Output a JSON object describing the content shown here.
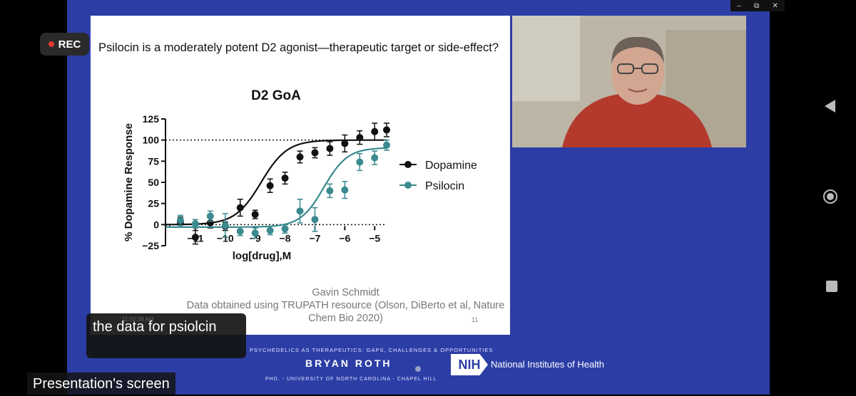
{
  "window_controls": {
    "minimize": "–",
    "restore": "⧉",
    "close": "✕"
  },
  "recording": {
    "label": "REC"
  },
  "slide": {
    "title": "Psilocin is a moderately potent D2 agonist—therapeutic target or side-effect?",
    "credit_line1": "Gavin Schmidt",
    "credit_line2": "Data obtained using TRUPATH resource (Olson, DiBerto et al, Nature",
    "credit_line3": "Chem Bio 2020)",
    "slide_number": "11"
  },
  "chart_data": {
    "type": "scatter",
    "title": "D2 GoA",
    "xlabel": "log[drug],M",
    "ylabel": "% Dopamine Response",
    "xlim": [
      -12,
      -4.6
    ],
    "ylim": [
      -25,
      125
    ],
    "xticks": [
      -11,
      -10,
      -9,
      -8,
      -7,
      -6,
      -5
    ],
    "yticks": [
      -25,
      0,
      25,
      50,
      75,
      100,
      125
    ],
    "reference_line": 100,
    "legend_position": "right",
    "series": [
      {
        "name": "Dopamine",
        "color": "#111111",
        "x": [
          -11.5,
          -11.0,
          -10.5,
          -10.0,
          -9.5,
          -9.0,
          -8.5,
          -8.0,
          -7.5,
          -7.0,
          -6.5,
          -6.0,
          -5.5,
          -5.0,
          -4.6
        ],
        "y": [
          3,
          -15,
          2,
          -2,
          20,
          12,
          46,
          55,
          80,
          85,
          90,
          96,
          103,
          110,
          112
        ],
        "err": [
          6,
          8,
          6,
          5,
          10,
          5,
          8,
          7,
          7,
          6,
          8,
          10,
          8,
          10,
          8
        ],
        "fit": {
          "bottom": 0,
          "top": 100,
          "logEC50": -8.8,
          "hill": 1.0
        }
      },
      {
        "name": "Psilocin",
        "color": "#3a8a8f",
        "x": [
          -11.5,
          -11.0,
          -10.5,
          -10.0,
          -9.5,
          -9.0,
          -8.5,
          -8.0,
          -7.5,
          -7.0,
          -6.5,
          -6.0,
          -5.5,
          -5.0,
          -4.6
        ],
        "y": [
          5,
          1,
          10,
          -1,
          -8,
          -10,
          -7,
          -5,
          16,
          6,
          40,
          41,
          74,
          79,
          94
        ],
        "err": [
          6,
          5,
          6,
          14,
          5,
          6,
          5,
          5,
          14,
          14,
          8,
          10,
          10,
          8,
          6
        ],
        "fit": {
          "bottom": -3,
          "top": 91,
          "logEC50": -6.7,
          "hill": 1.1
        }
      }
    ]
  },
  "caption": {
    "timestamp": "11:02:38 AM",
    "text": "the data for psiolcin"
  },
  "presentation_label": "Presentation's screen",
  "footer": {
    "tagline": "PSYCHEDELICS AS THERAPEUTICS: GAPS, CHALLENGES & OPPORTUNITIES",
    "speaker": "BRYAN ROTH",
    "affiliation": "PHD. - UNIVERSITY OF NORTH CAROLINA - CHAPEL HILL",
    "nih_logo": "NIH",
    "nih_name": "National Institutes of Health"
  }
}
